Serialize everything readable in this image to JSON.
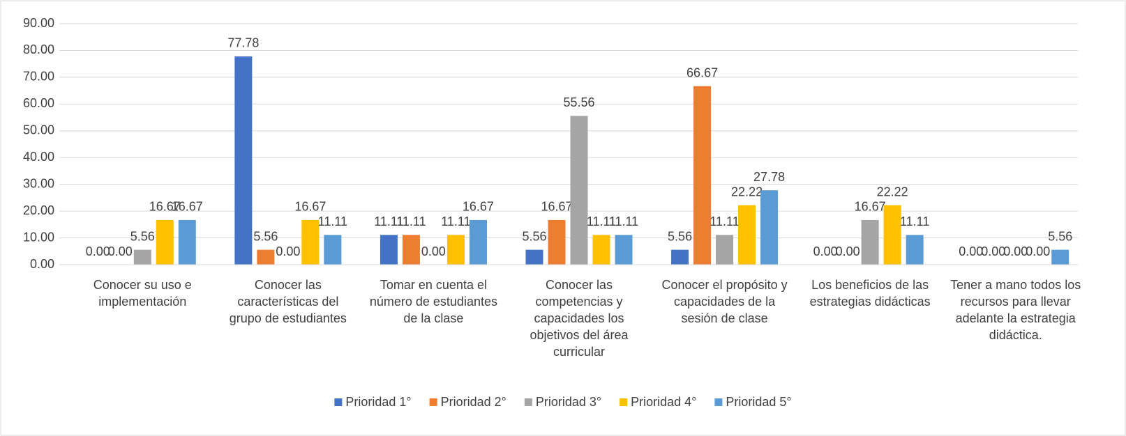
{
  "chart_data": {
    "type": "bar",
    "categories": [
      "Conocer su uso e implementación",
      "Conocer las características del grupo de estudiantes",
      "Tomar en cuenta el número de estudiantes de la clase",
      "Conocer las competencias y capacidades los objetivos del área curricular",
      "Conocer el propósito y capacidades de la sesión de clase",
      "Los beneficios de las estrategias didácticas",
      "Tener a mano todos los recursos para llevar adelante la estrategia didáctica."
    ],
    "series": [
      {
        "name": "Prioridad 1°",
        "color": "#4472c4",
        "values": [
          0,
          77.78,
          11.11,
          5.56,
          5.56,
          0,
          0
        ],
        "value_labels": [
          "0.00",
          "77.78",
          "11.11",
          "5.56",
          "5.56",
          "0.00",
          "0.00"
        ]
      },
      {
        "name": "Prioridad 2°",
        "color": "#ed7d31",
        "values": [
          0,
          5.56,
          11.11,
          16.67,
          66.67,
          0,
          0
        ],
        "value_labels": [
          "0.00",
          "5.56",
          "11.11",
          "16.67",
          "66.67",
          "0.00",
          "0.00"
        ]
      },
      {
        "name": "Prioridad 3°",
        "color": "#a5a5a5",
        "values": [
          5.56,
          0,
          0,
          55.56,
          11.11,
          16.67,
          0
        ],
        "value_labels": [
          "5.56",
          "0.00",
          "0.00",
          "55.56",
          "11.11",
          "16.67",
          "0.00"
        ]
      },
      {
        "name": "Prioridad 4°",
        "color": "#ffc000",
        "values": [
          16.67,
          16.67,
          11.11,
          11.11,
          22.22,
          22.22,
          0
        ],
        "value_labels": [
          "16.67",
          "16.67",
          "11.11",
          "11.11",
          "22.22",
          "22.22",
          "0.00"
        ]
      },
      {
        "name": "Prioridad 5°",
        "color": "#5b9bd5",
        "values": [
          16.67,
          11.11,
          16.67,
          11.11,
          27.78,
          11.11,
          5.56
        ],
        "value_labels": [
          "16.67",
          "11.11",
          "16.67",
          "11.11",
          "27.78",
          "11.11",
          "5.56"
        ]
      }
    ],
    "ylim": [
      0,
      90
    ],
    "yticks": [
      {
        "value": 0,
        "label": "0.00"
      },
      {
        "value": 10,
        "label": "10.00"
      },
      {
        "value": 20,
        "label": "20.00"
      },
      {
        "value": 30,
        "label": "30.00"
      },
      {
        "value": 40,
        "label": "40.00"
      },
      {
        "value": 50,
        "label": "50.00"
      },
      {
        "value": 60,
        "label": "60.00"
      },
      {
        "value": 70,
        "label": "70.00"
      },
      {
        "value": 80,
        "label": "80.00"
      },
      {
        "value": 90,
        "label": "90.00"
      }
    ],
    "grid": true,
    "legend": "bottom"
  }
}
